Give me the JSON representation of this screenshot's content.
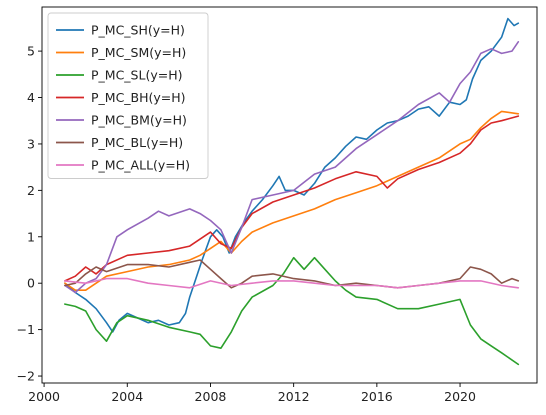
{
  "chart_data": {
    "type": "line",
    "title": "",
    "xlabel": "",
    "ylabel": "",
    "xlim": [
      1999.9,
      2023.7
    ],
    "ylim": [
      -2.15,
      5.95
    ],
    "x_ticks": [
      2000,
      2004,
      2008,
      2012,
      2016,
      2020
    ],
    "y_ticks": [
      -2,
      -1,
      0,
      1,
      2,
      3,
      4,
      5
    ],
    "grid": false,
    "legend_position": "upper-left",
    "series": [
      {
        "name": "P_MC_SH(y=H)",
        "color": "#1f77b4",
        "points": [
          [
            2001,
            0.0
          ],
          [
            2001.5,
            -0.2
          ],
          [
            2002,
            -0.35
          ],
          [
            2002.5,
            -0.55
          ],
          [
            2003,
            -0.85
          ],
          [
            2003.3,
            -1.05
          ],
          [
            2003.6,
            -0.8
          ],
          [
            2004,
            -0.65
          ],
          [
            2004.5,
            -0.75
          ],
          [
            2005,
            -0.85
          ],
          [
            2005.5,
            -0.8
          ],
          [
            2006,
            -0.9
          ],
          [
            2006.5,
            -0.85
          ],
          [
            2006.8,
            -0.65
          ],
          [
            2007,
            -0.3
          ],
          [
            2007.3,
            0.1
          ],
          [
            2007.6,
            0.5
          ],
          [
            2008,
            1.0
          ],
          [
            2008.3,
            1.15
          ],
          [
            2008.6,
            1.0
          ],
          [
            2008.9,
            0.65
          ],
          [
            2009.2,
            1.0
          ],
          [
            2009.6,
            1.3
          ],
          [
            2010,
            1.55
          ],
          [
            2010.5,
            1.8
          ],
          [
            2011,
            2.1
          ],
          [
            2011.3,
            2.3
          ],
          [
            2011.6,
            2.0
          ],
          [
            2012,
            2.0
          ],
          [
            2012.5,
            1.9
          ],
          [
            2013,
            2.15
          ],
          [
            2013.5,
            2.5
          ],
          [
            2014,
            2.7
          ],
          [
            2014.5,
            2.95
          ],
          [
            2015,
            3.15
          ],
          [
            2015.5,
            3.1
          ],
          [
            2016,
            3.3
          ],
          [
            2016.5,
            3.45
          ],
          [
            2017,
            3.5
          ],
          [
            2017.5,
            3.6
          ],
          [
            2018,
            3.75
          ],
          [
            2018.5,
            3.8
          ],
          [
            2019,
            3.6
          ],
          [
            2019.5,
            3.9
          ],
          [
            2020,
            3.85
          ],
          [
            2020.3,
            3.95
          ],
          [
            2020.6,
            4.4
          ],
          [
            2021,
            4.8
          ],
          [
            2021.5,
            5.0
          ],
          [
            2022,
            5.3
          ],
          [
            2022.3,
            5.7
          ],
          [
            2022.6,
            5.55
          ],
          [
            2022.8,
            5.6
          ]
        ]
      },
      {
        "name": "P_MC_SM(y=H)",
        "color": "#ff7f0e",
        "points": [
          [
            2001,
            0.0
          ],
          [
            2001.5,
            -0.15
          ],
          [
            2002,
            -0.15
          ],
          [
            2002.5,
            0.0
          ],
          [
            2003,
            0.15
          ],
          [
            2004,
            0.25
          ],
          [
            2005,
            0.35
          ],
          [
            2006,
            0.4
          ],
          [
            2007,
            0.5
          ],
          [
            2007.5,
            0.6
          ],
          [
            2008,
            0.75
          ],
          [
            2008.5,
            0.9
          ],
          [
            2009,
            0.65
          ],
          [
            2009.5,
            0.9
          ],
          [
            2010,
            1.1
          ],
          [
            2011,
            1.3
          ],
          [
            2012,
            1.45
          ],
          [
            2013,
            1.6
          ],
          [
            2014,
            1.8
          ],
          [
            2015,
            1.95
          ],
          [
            2016,
            2.1
          ],
          [
            2017,
            2.3
          ],
          [
            2018,
            2.5
          ],
          [
            2019,
            2.7
          ],
          [
            2020,
            3.0
          ],
          [
            2020.5,
            3.1
          ],
          [
            2021,
            3.35
          ],
          [
            2021.5,
            3.55
          ],
          [
            2022,
            3.7
          ],
          [
            2022.8,
            3.65
          ]
        ]
      },
      {
        "name": "P_MC_SL(y=H)",
        "color": "#2ca02c",
        "points": [
          [
            2001,
            -0.45
          ],
          [
            2001.5,
            -0.5
          ],
          [
            2002,
            -0.6
          ],
          [
            2002.5,
            -1.0
          ],
          [
            2003,
            -1.25
          ],
          [
            2003.5,
            -0.85
          ],
          [
            2004,
            -0.7
          ],
          [
            2005,
            -0.8
          ],
          [
            2006,
            -0.95
          ],
          [
            2007,
            -1.05
          ],
          [
            2007.5,
            -1.1
          ],
          [
            2008,
            -1.35
          ],
          [
            2008.5,
            -1.4
          ],
          [
            2009,
            -1.05
          ],
          [
            2009.5,
            -0.6
          ],
          [
            2010,
            -0.3
          ],
          [
            2011,
            -0.05
          ],
          [
            2011.5,
            0.2
          ],
          [
            2012,
            0.55
          ],
          [
            2012.5,
            0.3
          ],
          [
            2013,
            0.55
          ],
          [
            2013.5,
            0.3
          ],
          [
            2014,
            0.05
          ],
          [
            2014.5,
            -0.15
          ],
          [
            2015,
            -0.3
          ],
          [
            2016,
            -0.35
          ],
          [
            2017,
            -0.55
          ],
          [
            2018,
            -0.55
          ],
          [
            2019,
            -0.45
          ],
          [
            2020,
            -0.35
          ],
          [
            2020.5,
            -0.9
          ],
          [
            2021,
            -1.2
          ],
          [
            2021.5,
            -1.35
          ],
          [
            2022,
            -1.5
          ],
          [
            2022.8,
            -1.75
          ]
        ]
      },
      {
        "name": "P_MC_BH(y=H)",
        "color": "#d62728",
        "points": [
          [
            2001,
            0.05
          ],
          [
            2001.5,
            0.15
          ],
          [
            2002,
            0.35
          ],
          [
            2002.5,
            0.2
          ],
          [
            2003,
            0.4
          ],
          [
            2004,
            0.6
          ],
          [
            2005,
            0.65
          ],
          [
            2006,
            0.7
          ],
          [
            2007,
            0.8
          ],
          [
            2007.5,
            0.95
          ],
          [
            2008,
            1.1
          ],
          [
            2008.5,
            0.85
          ],
          [
            2009,
            0.75
          ],
          [
            2009.5,
            1.2
          ],
          [
            2010,
            1.5
          ],
          [
            2011,
            1.75
          ],
          [
            2012,
            1.9
          ],
          [
            2013,
            2.05
          ],
          [
            2014,
            2.25
          ],
          [
            2015,
            2.4
          ],
          [
            2016,
            2.3
          ],
          [
            2016.5,
            2.05
          ],
          [
            2017,
            2.25
          ],
          [
            2018,
            2.45
          ],
          [
            2019,
            2.6
          ],
          [
            2020,
            2.8
          ],
          [
            2020.5,
            3.0
          ],
          [
            2021,
            3.3
          ],
          [
            2021.5,
            3.45
          ],
          [
            2022,
            3.5
          ],
          [
            2022.8,
            3.6
          ]
        ]
      },
      {
        "name": "P_MC_BM(y=H)",
        "color": "#9467bd",
        "points": [
          [
            2001,
            -0.05
          ],
          [
            2001.5,
            -0.2
          ],
          [
            2002,
            0.0
          ],
          [
            2002.5,
            0.1
          ],
          [
            2003,
            0.4
          ],
          [
            2003.5,
            1.0
          ],
          [
            2004,
            1.15
          ],
          [
            2005,
            1.4
          ],
          [
            2005.5,
            1.55
          ],
          [
            2006,
            1.45
          ],
          [
            2007,
            1.6
          ],
          [
            2007.5,
            1.5
          ],
          [
            2008,
            1.35
          ],
          [
            2008.5,
            1.15
          ],
          [
            2009,
            0.65
          ],
          [
            2009.5,
            1.2
          ],
          [
            2010,
            1.8
          ],
          [
            2011,
            1.9
          ],
          [
            2012,
            2.0
          ],
          [
            2013,
            2.35
          ],
          [
            2014,
            2.5
          ],
          [
            2015,
            2.9
          ],
          [
            2016,
            3.2
          ],
          [
            2017,
            3.5
          ],
          [
            2018,
            3.85
          ],
          [
            2019,
            4.1
          ],
          [
            2019.5,
            3.9
          ],
          [
            2020,
            4.3
          ],
          [
            2020.5,
            4.55
          ],
          [
            2021,
            4.95
          ],
          [
            2021.5,
            5.05
          ],
          [
            2022,
            4.95
          ],
          [
            2022.5,
            5.0
          ],
          [
            2022.8,
            5.2
          ]
        ]
      },
      {
        "name": "P_MC_BL(y=H)",
        "color": "#8c564b",
        "points": [
          [
            2001,
            -0.05
          ],
          [
            2001.5,
            0.0
          ],
          [
            2002,
            0.2
          ],
          [
            2002.5,
            0.35
          ],
          [
            2003,
            0.25
          ],
          [
            2004,
            0.4
          ],
          [
            2005,
            0.4
          ],
          [
            2006,
            0.35
          ],
          [
            2007,
            0.45
          ],
          [
            2007.5,
            0.5
          ],
          [
            2008,
            0.3
          ],
          [
            2008.5,
            0.1
          ],
          [
            2009,
            -0.1
          ],
          [
            2009.5,
            0.0
          ],
          [
            2010,
            0.15
          ],
          [
            2011,
            0.2
          ],
          [
            2012,
            0.1
          ],
          [
            2013,
            0.05
          ],
          [
            2014,
            -0.05
          ],
          [
            2015,
            0.0
          ],
          [
            2016,
            -0.05
          ],
          [
            2017,
            -0.1
          ],
          [
            2018,
            -0.05
          ],
          [
            2019,
            0.0
          ],
          [
            2020,
            0.1
          ],
          [
            2020.5,
            0.35
          ],
          [
            2021,
            0.3
          ],
          [
            2021.5,
            0.2
          ],
          [
            2022,
            0.0
          ],
          [
            2022.5,
            0.1
          ],
          [
            2022.8,
            0.05
          ]
        ]
      },
      {
        "name": "P_MC_ALL(y=H)",
        "color": "#e377c2",
        "points": [
          [
            2001,
            0.05
          ],
          [
            2002,
            0.0
          ],
          [
            2003,
            0.1
          ],
          [
            2004,
            0.1
          ],
          [
            2005,
            0.0
          ],
          [
            2006,
            -0.05
          ],
          [
            2007,
            -0.1
          ],
          [
            2008,
            0.05
          ],
          [
            2009,
            -0.05
          ],
          [
            2010,
            0.0
          ],
          [
            2011,
            0.05
          ],
          [
            2012,
            0.05
          ],
          [
            2013,
            0.0
          ],
          [
            2014,
            -0.05
          ],
          [
            2015,
            -0.05
          ],
          [
            2016,
            -0.05
          ],
          [
            2017,
            -0.1
          ],
          [
            2018,
            -0.05
          ],
          [
            2019,
            0.0
          ],
          [
            2020,
            0.05
          ],
          [
            2021,
            0.05
          ],
          [
            2022,
            -0.05
          ],
          [
            2022.8,
            -0.1
          ]
        ]
      }
    ]
  }
}
